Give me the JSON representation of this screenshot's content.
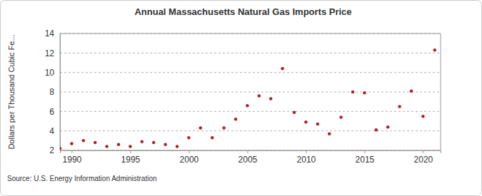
{
  "chart_data": {
    "type": "scatter",
    "title": "Annual Massachusetts Natural Gas Imports Price",
    "y_label": "Dollars per Thousand Cubic Fe...",
    "source": "Source: U.S. Energy Information Administration",
    "x": [
      1989,
      1990,
      1991,
      1992,
      1993,
      1994,
      1995,
      1996,
      1997,
      1998,
      1999,
      2000,
      2001,
      2002,
      2003,
      2004,
      2005,
      2006,
      2007,
      2008,
      2009,
      2010,
      2011,
      2012,
      2013,
      2014,
      2015,
      2016,
      2017,
      2018,
      2019,
      2020,
      2021
    ],
    "values": [
      2.2,
      2.7,
      3.0,
      2.8,
      2.4,
      2.6,
      2.4,
      2.9,
      2.8,
      2.6,
      2.4,
      3.3,
      4.3,
      3.3,
      4.3,
      5.2,
      6.6,
      7.6,
      7.3,
      10.4,
      5.9,
      4.9,
      4.7,
      3.7,
      5.4,
      8.0,
      7.9,
      4.1,
      4.4,
      6.5,
      8.1,
      5.5,
      12.3
    ],
    "color": "#b22222",
    "marker": "circle",
    "xlim": [
      1989,
      2021.5
    ],
    "xticks": [
      1990,
      1995,
      2000,
      2005,
      2010,
      2015,
      2020
    ],
    "ylim": [
      2,
      14
    ],
    "yticks": [
      2,
      4,
      6,
      8,
      10,
      12,
      14
    ],
    "grid": true
  }
}
